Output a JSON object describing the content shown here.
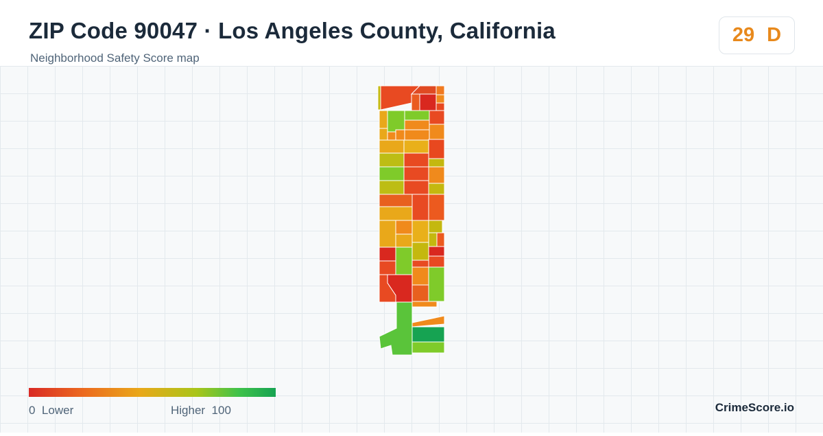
{
  "header": {
    "title": "ZIP Code 90047 · Los Angeles County, California",
    "subtitle": "Neighborhood Safety Score map"
  },
  "score": {
    "value": "29",
    "grade": "D",
    "color": "#e8891c"
  },
  "legend": {
    "min_value": "0",
    "min_label": "Lower",
    "max_label": "Higher",
    "max_value": "100",
    "colors": [
      "#d92a25",
      "#ec6a1f",
      "#e9a81a",
      "#a9c51a",
      "#3fc24a",
      "#16a352"
    ]
  },
  "brand": "CrimeScore.io"
}
